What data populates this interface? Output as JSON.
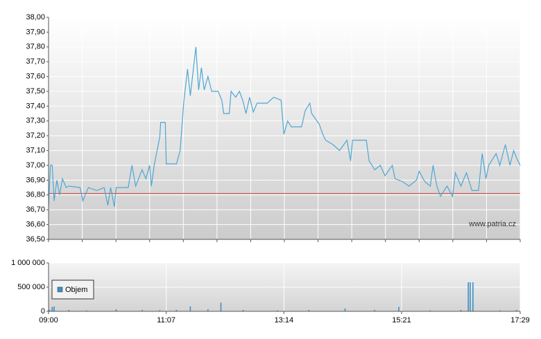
{
  "chart_data": [
    {
      "type": "line",
      "color": "#4da6d4",
      "watermark": "www.patria.cz",
      "x": [
        "09:00",
        "09:02",
        "09:04",
        "09:06",
        "09:09",
        "09:12",
        "09:15",
        "09:19",
        "09:22",
        "09:34",
        "09:37",
        "09:43",
        "09:52",
        "10:00",
        "10:04",
        "10:07",
        "10:11",
        "10:13",
        "10:26",
        "10:30",
        "10:34",
        "10:41",
        "10:45",
        "10:49",
        "10:51",
        "10:54",
        "11:00",
        "11:01",
        "11:06",
        "11:07",
        "11:18",
        "11:22",
        "11:26",
        "11:30",
        "11:33",
        "11:39",
        "11:42",
        "11:45",
        "11:48",
        "11:52",
        "11:56",
        "12:03",
        "12:07",
        "12:09",
        "12:15",
        "12:17",
        "12:22",
        "12:26",
        "12:30",
        "12:33",
        "12:37",
        "12:41",
        "12:45",
        "12:56",
        "13:03",
        "13:11",
        "13:14",
        "13:18",
        "13:22",
        "13:33",
        "13:37",
        "13:42",
        "13:44",
        "13:52",
        "13:56",
        "13:59",
        "14:07",
        "14:14",
        "14:22",
        "14:26",
        "14:28",
        "14:43",
        "14:46",
        "14:52",
        "14:58",
        "15:03",
        "15:11",
        "15:14",
        "15:22",
        "15:29",
        "15:37",
        "15:40",
        "15:46",
        "15:52",
        "15:55",
        "15:59",
        "16:03",
        "16:10",
        "16:16",
        "16:19",
        "16:25",
        "16:31",
        "16:37",
        "16:44",
        "16:48",
        "16:52",
        "16:55",
        "17:03",
        "17:07",
        "17:13",
        "17:18",
        "17:22",
        "17:25",
        "17:29"
      ],
      "values": [
        36.72,
        37.0,
        37.0,
        36.76,
        36.9,
        36.8,
        36.91,
        36.85,
        36.86,
        36.85,
        36.76,
        36.85,
        36.83,
        36.85,
        36.73,
        36.85,
        36.72,
        36.85,
        36.85,
        37.0,
        36.86,
        36.97,
        36.91,
        37.0,
        36.86,
        37.0,
        37.19,
        37.29,
        37.29,
        37.01,
        37.01,
        37.1,
        37.43,
        37.65,
        37.47,
        37.8,
        37.51,
        37.66,
        37.51,
        37.6,
        37.5,
        37.5,
        37.44,
        37.35,
        37.35,
        37.5,
        37.46,
        37.5,
        37.43,
        37.35,
        37.46,
        37.36,
        37.42,
        37.42,
        37.46,
        37.44,
        37.21,
        37.3,
        37.26,
        37.26,
        37.37,
        37.42,
        37.35,
        37.28,
        37.21,
        37.17,
        37.14,
        37.1,
        37.17,
        37.03,
        37.17,
        37.17,
        37.03,
        36.97,
        37.0,
        36.93,
        37.0,
        36.91,
        36.89,
        36.86,
        36.9,
        36.96,
        36.89,
        36.86,
        37.0,
        36.86,
        36.79,
        36.86,
        36.79,
        36.95,
        36.86,
        36.95,
        36.83,
        36.83,
        37.08,
        36.91,
        37.0,
        37.08,
        37.0,
        37.14,
        37.0,
        37.1,
        37.05,
        37.0
      ],
      "reference_line": 36.81,
      "reference_color": "#d03a3a",
      "xlim": [
        "09:00",
        "17:29"
      ],
      "ylim": [
        36.5,
        38.0
      ],
      "yticks": [
        {
          "value": 36.5,
          "label": "36,50"
        },
        {
          "value": 36.6,
          "label": "36,60"
        },
        {
          "value": 36.7,
          "label": "36,70"
        },
        {
          "value": 36.8,
          "label": "36,80"
        },
        {
          "value": 36.9,
          "label": "36,90"
        },
        {
          "value": 37.0,
          "label": "37,00"
        },
        {
          "value": 37.1,
          "label": "37,10"
        },
        {
          "value": 37.2,
          "label": "37,20"
        },
        {
          "value": 37.3,
          "label": "37,30"
        },
        {
          "value": 37.4,
          "label": "37,40"
        },
        {
          "value": 37.5,
          "label": "37,50"
        },
        {
          "value": 37.6,
          "label": "37,60"
        },
        {
          "value": 37.7,
          "label": "37,70"
        },
        {
          "value": 37.8,
          "label": "37,80"
        },
        {
          "value": 37.9,
          "label": "37,90"
        },
        {
          "value": 38.0,
          "label": "38,00"
        }
      ],
      "grid": true
    },
    {
      "type": "bar",
      "legend": "upper left",
      "x": [
        "09:01",
        "09:04",
        "09:06",
        "09:22",
        "09:41",
        "10:13",
        "10:41",
        "11:00",
        "11:18",
        "11:33",
        "11:52",
        "12:06",
        "12:30",
        "13:07",
        "13:41",
        "14:20",
        "14:52",
        "15:18",
        "15:52",
        "16:25",
        "16:33",
        "16:35",
        "16:38",
        "17:07",
        "17:25"
      ],
      "series": [
        {
          "name": "Objem",
          "color": "#3d8fc6",
          "values": [
            30000,
            90000,
            100000,
            30000,
            20000,
            40000,
            30000,
            25000,
            30000,
            100000,
            40000,
            180000,
            30000,
            20000,
            30000,
            60000,
            30000,
            90000,
            20000,
            30000,
            600000,
            600000,
            600000,
            20000,
            30000
          ]
        }
      ],
      "xlim": [
        "09:00",
        "17:29"
      ],
      "xticks": [
        "09:00",
        "11:07",
        "13:14",
        "15:21",
        "17:29"
      ],
      "ylim": [
        0,
        1000000
      ],
      "yticks": [
        0,
        {
          "value": 500000,
          "label": "500 000"
        },
        {
          "value": 1000000,
          "label": "1 000 000"
        }
      ],
      "grid": true
    }
  ]
}
